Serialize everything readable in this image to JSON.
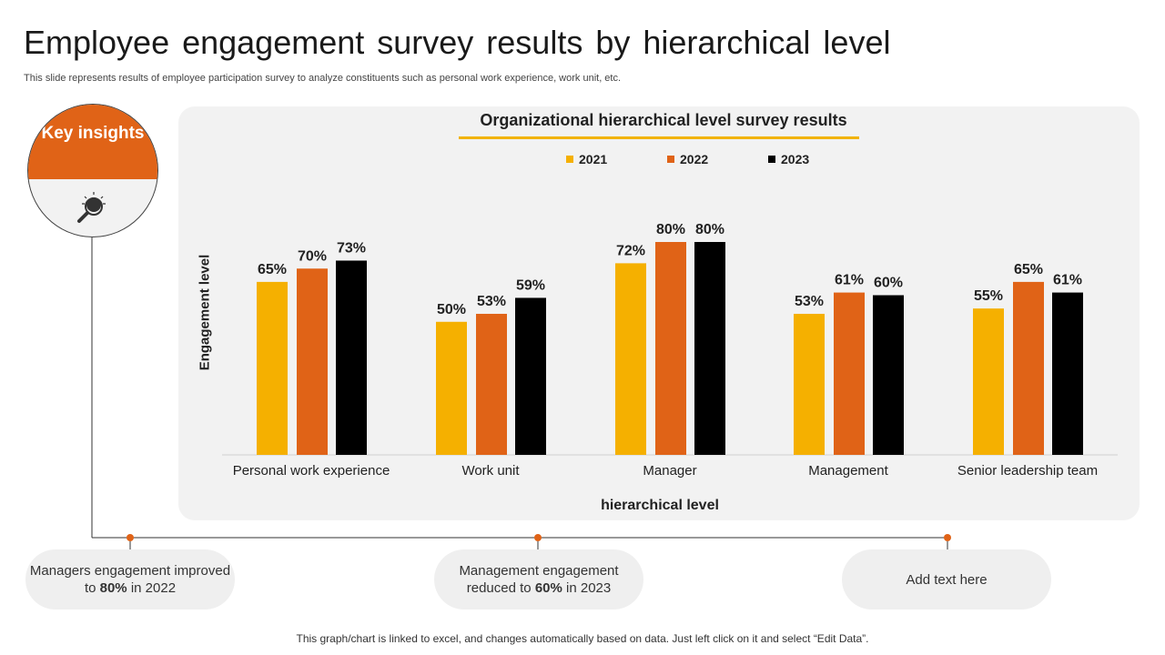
{
  "title": "Employee engagement survey results by hierarchical level",
  "subtitle": "This slide represents results of employee participation survey to analyze  constituents such as personal work experience, work unit, etc.",
  "key_insights": {
    "label": "Key insights",
    "icon": "lightbulb-magnifier-icon"
  },
  "insights": [
    {
      "pre": "Managers engagement improved to ",
      "bold": "80%",
      "post": " in 2022"
    },
    {
      "pre": "Management engagement reduced to ",
      "bold": "60%",
      "post": " in 2023"
    },
    {
      "pre": "Add text here",
      "bold": "",
      "post": ""
    }
  ],
  "footer": "This graph/chart is linked to excel,  and changes automatically based on data. Just left click on it and select “Edit Data”.",
  "colors": {
    "accent": "#e06317",
    "y2021": "#f5b000",
    "y2022": "#e06317",
    "y2023": "#000000"
  },
  "chart_data": {
    "type": "bar",
    "title": "Organizational hierarchical level survey results",
    "xlabel": "hierarchical level",
    "ylabel": "Engagement level",
    "ylim": [
      0,
      80
    ],
    "grid": false,
    "legend": "top",
    "categories": [
      "Personal work experience",
      "Work unit",
      "Manager",
      "Management",
      "Senior leadership team"
    ],
    "series": [
      {
        "name": "2021",
        "color": "#f5b000",
        "values": [
          65,
          50,
          72,
          53,
          55
        ]
      },
      {
        "name": "2022",
        "color": "#e06317",
        "values": [
          70,
          53,
          80,
          61,
          65
        ]
      },
      {
        "name": "2023",
        "color": "#000000",
        "values": [
          73,
          59,
          80,
          60,
          61
        ]
      }
    ]
  }
}
